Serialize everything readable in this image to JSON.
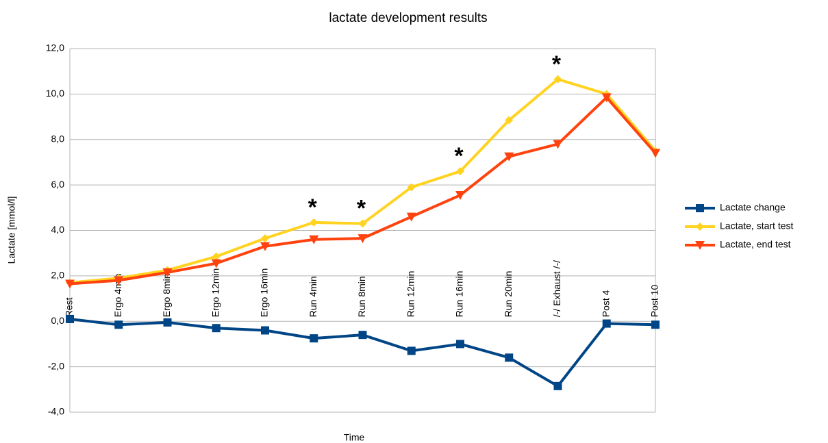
{
  "chart_data": {
    "type": "line",
    "title": "lactate development results",
    "x_label": "Time",
    "y_label": "Lactate [mmol/l]",
    "categories": [
      "Rest",
      "Ergo 4min",
      "Ergo 8min",
      "Ergo 12min",
      "Ergo 16min",
      "Run 4min",
      "Run 8min",
      "Run 12min",
      "Run 16min",
      "Run 20min",
      "/-/ Exhaust /-/",
      "Post 4",
      "Post 10"
    ],
    "series": [
      {
        "name": "Lactate change",
        "color": "#004586",
        "marker": "square",
        "values": [
          0.1,
          -0.15,
          -0.05,
          -0.3,
          -0.4,
          -0.75,
          -0.6,
          -1.3,
          -1.0,
          -1.6,
          -2.85,
          -0.1,
          -0.15
        ]
      },
      {
        "name": "Lactate, start test",
        "color": "#ffd320",
        "marker": "diamond",
        "values": [
          1.7,
          1.9,
          2.25,
          2.85,
          3.65,
          4.35,
          4.3,
          5.9,
          6.6,
          8.85,
          10.65,
          10.0,
          7.5
        ]
      },
      {
        "name": "Lactate, end test",
        "color": "#ff420e",
        "marker": "triangle-down",
        "values": [
          1.65,
          1.8,
          2.15,
          2.55,
          3.3,
          3.6,
          3.65,
          4.6,
          5.55,
          7.25,
          7.8,
          9.85,
          7.4
        ]
      }
    ],
    "annotations": [
      {
        "text": "*",
        "category": "Run 4min"
      },
      {
        "text": "*",
        "category": "Run 8min"
      },
      {
        "text": "*",
        "category": "Run 16min"
      },
      {
        "text": "*",
        "category": "/-/ Exhaust /-/"
      }
    ],
    "ylim": [
      -4,
      12
    ],
    "yticks": [
      {
        "value": -4,
        "label": "-4,0"
      },
      {
        "value": -2,
        "label": "-2,0"
      },
      {
        "value": 0,
        "label": "0,0"
      },
      {
        "value": 2,
        "label": "2,0"
      },
      {
        "value": 4,
        "label": "4,0"
      },
      {
        "value": 6,
        "label": "6,0"
      },
      {
        "value": 8,
        "label": "8,0"
      },
      {
        "value": 10,
        "label": "10,0"
      },
      {
        "value": 12,
        "label": "12,0"
      }
    ],
    "grid": true,
    "legend": "right"
  }
}
